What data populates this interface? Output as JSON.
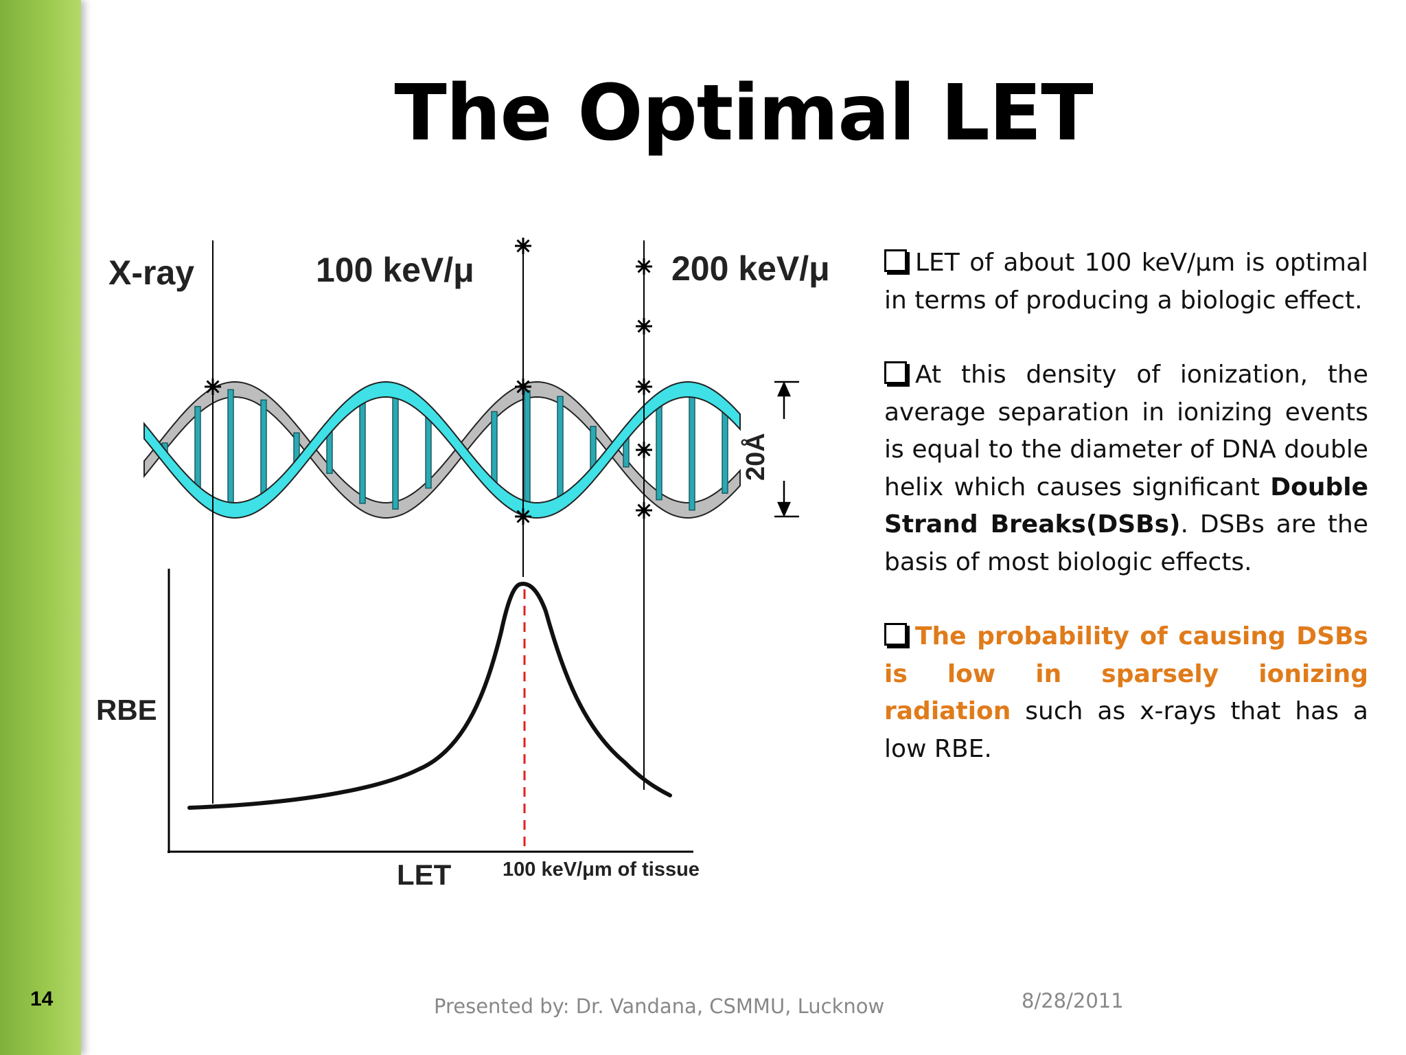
{
  "slide": {
    "number": "14",
    "title": "The Optimal LET"
  },
  "figure": {
    "labels": {
      "xray": "X-ray",
      "kev100": "100 keV/μ",
      "kev200": "200 keV/μ",
      "helix_width": "20Å",
      "rbe": "RBE",
      "let": "LET",
      "let_peak": "100 keV/μm of tissue"
    },
    "colors": {
      "strand_front": "#3fe0e6",
      "strand_back": "#bdbdbd",
      "rung": "#2aa9b3",
      "peak_line": "#e02020"
    }
  },
  "text": {
    "p1": {
      "lead": "LET of about 100 keV/µm is optimal in terms of producing a biologic effect."
    },
    "p2": {
      "lead": "At this density of ionization, the average separation in ionizing events is equal to the diameter of DNA double helix which causes significant",
      "bold": "Double Strand Breaks(DSBs)",
      "tail": ". DSBs are the basis of most biologic effects."
    },
    "p3": {
      "highlight": "The probability of causing DSBs is low in sparsely ionizing radiation",
      "tail": "such as x-rays that has a low RBE."
    }
  },
  "footer": {
    "presenter": "Presented by: Dr. Vandana, CSMMU, Lucknow",
    "date": "8/28/2011"
  }
}
